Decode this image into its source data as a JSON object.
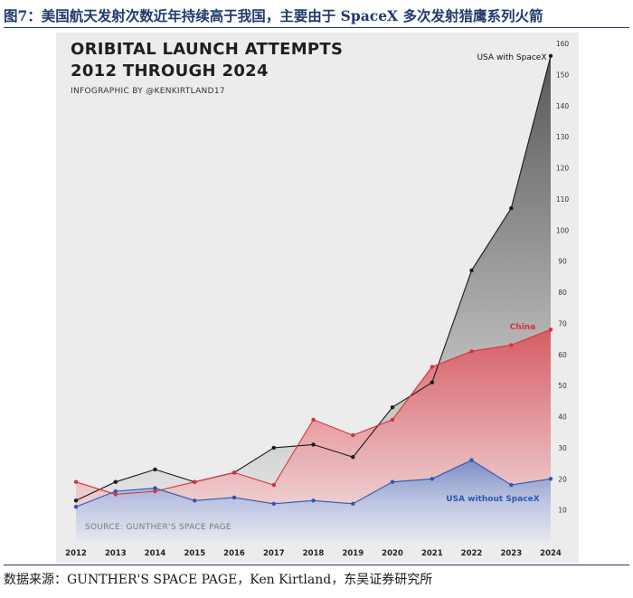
{
  "figure": {
    "title": "图7：美国航天发射次数近年持续高于我国，主要由于 SpaceX 多次发射猎鹰系列火箭",
    "source": "数据来源：GUNTHER'S SPACE PAGE，Ken Kirtland，东吴证券研究所"
  },
  "chart_data": {
    "type": "area",
    "title_line1": "ORIBITAL LAUNCH ATTEMPTS",
    "title_line2": "2012 THROUGH 2024",
    "subtitle": "INFOGRAPHIC BY @KENKIRTLAND17",
    "source_note": "SOURCE: GUNTHER'S SPACE PAGE",
    "x": [
      2012,
      2013,
      2014,
      2015,
      2016,
      2017,
      2018,
      2019,
      2020,
      2021,
      2022,
      2023,
      2024
    ],
    "xticks": [
      "2012",
      "2013",
      "2014",
      "2015",
      "2016",
      "2017",
      "2018",
      "2019",
      "2020",
      "2021",
      "2022",
      "2023",
      "2024"
    ],
    "yticks": [
      "10",
      "20",
      "30",
      "40",
      "50",
      "60",
      "70",
      "80",
      "90",
      "100",
      "110",
      "120",
      "130",
      "140",
      "150",
      "160"
    ],
    "ylim": [
      0,
      160
    ],
    "axis_side": "right",
    "series": [
      {
        "name": "USA with SpaceX",
        "color": "#1a1a1a",
        "values": [
          13,
          19,
          23,
          19,
          22,
          30,
          31,
          27,
          43,
          51,
          87,
          107,
          156
        ]
      },
      {
        "name": "China",
        "color": "#d8313b",
        "values": [
          19,
          15,
          16,
          19,
          22,
          18,
          39,
          34,
          39,
          56,
          61,
          63,
          68
        ]
      },
      {
        "name": "USA without SpaceX",
        "color": "#2b57b3",
        "values": [
          11,
          16,
          17,
          13,
          14,
          12,
          13,
          12,
          19,
          20,
          26,
          18,
          20
        ]
      }
    ]
  }
}
